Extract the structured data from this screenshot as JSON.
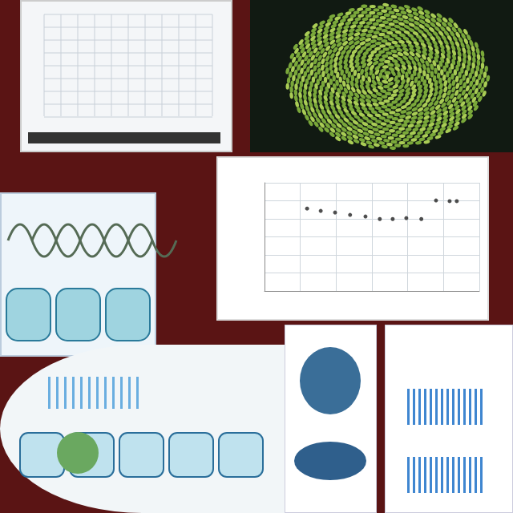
{
  "chart_data": {
    "type": "scatter",
    "x": [
      1.19,
      1.57,
      1.97,
      2.39,
      2.82,
      3.22,
      3.58,
      3.96,
      4.38,
      4.79,
      5.17,
      5.37
    ],
    "values": [
      4.57,
      4.44,
      4.35,
      4.22,
      4.13,
      3.99,
      3.99,
      4.04,
      3.99,
      5.02,
      4.98,
      4.98
    ],
    "color": "#222222",
    "marker": "circle",
    "xlim": [
      0,
      6
    ],
    "xticks": [
      0,
      1,
      2,
      3,
      4,
      5,
      6
    ],
    "ylim": [
      0,
      6
    ],
    "yticks": [
      0,
      1,
      2,
      3,
      4,
      5,
      6
    ],
    "grid": true,
    "tick_labels": false
  }
}
